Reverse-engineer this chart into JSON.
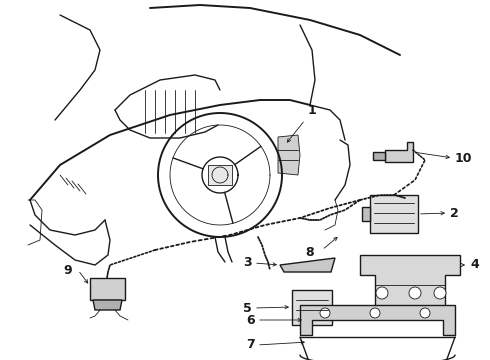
{
  "bg_color": "#ffffff",
  "line_color": "#1a1a1a",
  "label_color": "#000000",
  "fig_width": 4.9,
  "fig_height": 3.6,
  "dpi": 100,
  "lw_thin": 0.6,
  "lw_med": 1.0,
  "lw_thick": 1.4,
  "label_fontsize": 9
}
